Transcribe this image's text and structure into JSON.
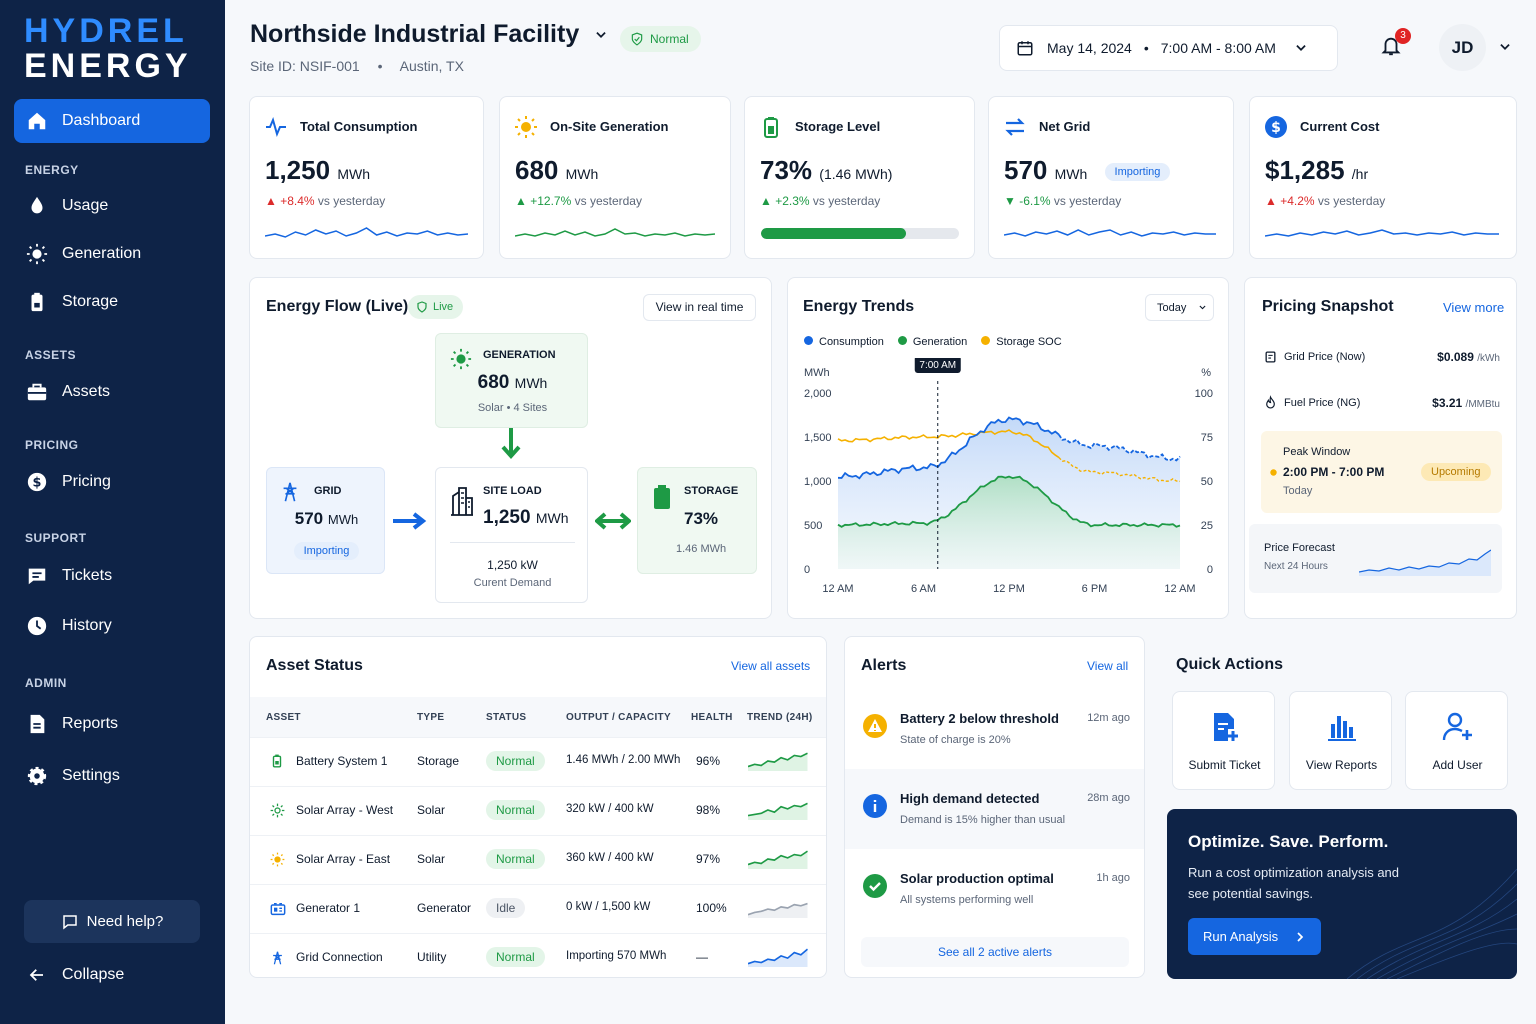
{
  "brand": {
    "line1": "HYDREL",
    "line2": "ENERGY"
  },
  "nav": {
    "dashboard": "Dashboard",
    "sec_energy": "ENERGY",
    "usage": "Usage",
    "generation": "Generation",
    "storage": "Storage",
    "sec_assets": "ASSETS",
    "assets": "Assets",
    "sec_pricing": "PRICING",
    "pricing": "Pricing",
    "sec_support": "SUPPORT",
    "tickets": "Tickets",
    "history": "History",
    "sec_admin": "ADMIN",
    "reports": "Reports",
    "settings": "Settings",
    "help": "Need help?",
    "collapse": "Collapse"
  },
  "header": {
    "facility": "Northside Industrial Facility",
    "status": "Normal",
    "site_id": "Site ID: NSIF-001",
    "location": "Austin, TX",
    "date": "May 14, 2024",
    "time": "7:00 AM - 8:00 AM",
    "notifications": "3",
    "avatar": "JD"
  },
  "kpis": [
    {
      "title": "Total Consumption",
      "value": "1,250",
      "unit": "MWh",
      "delta": "+8.4%",
      "delta_text": "vs yesterday"
    },
    {
      "title": "On-Site Generation",
      "value": "680",
      "unit": "MWh",
      "delta": "+12.7%",
      "delta_text": "vs yesterday"
    },
    {
      "title": "Storage Level",
      "value": "73%",
      "unit": "(1.46 MWh)",
      "delta": "+2.3%",
      "delta_text": "vs yesterday",
      "progress": 0.73
    },
    {
      "title": "Net Grid",
      "value": "570",
      "unit": "MWh",
      "badge": "Importing",
      "delta": "-6.1%",
      "delta_text": "vs yesterday"
    },
    {
      "title": "Current Cost",
      "value": "$1,285",
      "unit": "/hr",
      "delta": "+4.2%",
      "delta_text": "vs yesterday"
    }
  ],
  "flow": {
    "title": "Energy Flow (Live)",
    "live": "Live",
    "button": "View in real time",
    "gen": {
      "label": "GENERATION",
      "value": "680",
      "unit": "MWh",
      "sub1": "Solar",
      "sub2": "4 Sites"
    },
    "grid": {
      "label": "GRID",
      "value": "570",
      "unit": "MWh",
      "badge": "Importing"
    },
    "load": {
      "label": "SITE LOAD",
      "value": "1,250",
      "unit": "MWh",
      "demand": "1,250 kW",
      "demand_label": "Curent Demand"
    },
    "storage": {
      "label": "STORAGE",
      "value": "73%",
      "sub": "1.46 MWh"
    }
  },
  "trends": {
    "title": "Energy Trends",
    "range": "Today",
    "legend": [
      "Consumption",
      "Generation",
      "Storage SOC"
    ],
    "ylabel_left": "MWh",
    "ylabel_right": "%",
    "marker": "7:00 AM",
    "yticks_left": [
      "2,000",
      "1,500",
      "1,000",
      "500",
      "0"
    ],
    "yticks_right": [
      "100",
      "75",
      "50",
      "25",
      "0"
    ],
    "xticks": [
      "12 AM",
      "6 AM",
      "12 PM",
      "6 PM",
      "12 AM"
    ]
  },
  "chart_data": {
    "type": "line",
    "title": "Energy Trends",
    "x": [
      "12 AM",
      "6 AM",
      "12 PM",
      "6 PM",
      "12 AM"
    ],
    "series": [
      {
        "name": "Consumption",
        "values": [
          1050,
          1150,
          1700,
          1400,
          1250
        ]
      },
      {
        "name": "Generation",
        "values": [
          500,
          520,
          1050,
          500,
          500
        ]
      },
      {
        "name": "Storage SOC",
        "values": [
          73,
          75,
          78,
          55,
          50
        ]
      }
    ],
    "ylim_left": [
      0,
      2000
    ],
    "ylim_right": [
      0,
      100
    ]
  },
  "pricing": {
    "title": "Pricing Snapshot",
    "view_more": "View more",
    "grid_label": "Grid Price (Now)",
    "grid_value": "$0.089",
    "grid_unit": "/kWh",
    "fuel_label": "Fuel Price (NG)",
    "fuel_value": "$3.21",
    "fuel_unit": "/MMBtu",
    "peak_label": "Peak Window",
    "peak_time": "2:00 PM - 7:00 PM",
    "peak_day": "Today",
    "peak_badge": "Upcoming",
    "forecast_label": "Price Forecast",
    "forecast_sub": "Next 24 Hours"
  },
  "assets": {
    "title": "Asset Status",
    "view_all": "View all assets",
    "headers": [
      "ASSET",
      "TYPE",
      "STATUS",
      "OUTPUT / CAPACITY",
      "HEALTH",
      "TREND (24H)"
    ],
    "rows": [
      {
        "name": "Battery System 1",
        "type": "Storage",
        "status": "Normal",
        "output": "1.46 MWh / 2.00 MWh",
        "health": "96%"
      },
      {
        "name": "Solar Array - West",
        "type": "Solar",
        "status": "Normal",
        "output": "320 kW / 400 kW",
        "health": "98%"
      },
      {
        "name": "Solar Array - East",
        "type": "Solar",
        "status": "Normal",
        "output": "360 kW / 400 kW",
        "health": "97%"
      },
      {
        "name": "Generator 1",
        "type": "Generator",
        "status": "Idle",
        "output": "0 kW / 1,500 kW",
        "health": "100%"
      },
      {
        "name": "Grid Connection",
        "type": "Utility",
        "status": "Normal",
        "output": "Importing 570 MWh",
        "health": "—"
      }
    ]
  },
  "alerts": {
    "title": "Alerts",
    "view_all": "View all",
    "see_all": "See all 2 active alerts",
    "items": [
      {
        "title": "Battery 2 below threshold",
        "sub": "State of charge is 20%",
        "time": "12m ago"
      },
      {
        "title": "High demand detected",
        "sub": "Demand is 15% higher than usual",
        "time": "28m ago"
      },
      {
        "title": "Solar production optimal",
        "sub": "All systems performing well",
        "time": "1h ago"
      }
    ]
  },
  "actions": {
    "title": "Quick Actions",
    "submit": "Submit Ticket",
    "reports": "View Reports",
    "add_user": "Add User"
  },
  "promo": {
    "title": "Optimize. Save. Perform.",
    "text1": "Run a cost optimization analysis and",
    "text2": "see potential savings.",
    "button": "Run Analysis"
  }
}
